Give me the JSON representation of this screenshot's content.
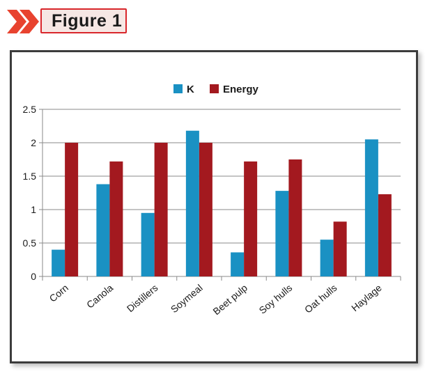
{
  "badge": {
    "label": "Figure 1",
    "accent_color": "#d9262b",
    "chevron_color": "#e8432f"
  },
  "chart_data": {
    "type": "bar",
    "categories": [
      "Corn",
      "Canola",
      "Distillers",
      "Soymeal",
      "Beet pulp",
      "Soy hulls",
      "Oat hulls",
      "Haylage"
    ],
    "series": [
      {
        "name": "K",
        "color": "#1a91c3",
        "values": [
          0.4,
          1.38,
          0.95,
          2.18,
          0.36,
          1.28,
          0.55,
          2.05
        ]
      },
      {
        "name": "Energy",
        "color": "#a3191f",
        "values": [
          2.0,
          1.72,
          2.0,
          2.0,
          1.72,
          1.75,
          0.82,
          1.23
        ]
      }
    ],
    "title": "",
    "xlabel": "",
    "ylabel": "",
    "ylim": [
      0,
      2.5
    ],
    "yticks": [
      0,
      0.5,
      1,
      1.5,
      2,
      2.5
    ],
    "ytick_labels": [
      "0",
      "0.5",
      "1",
      "1.5",
      "2",
      "2.5"
    ],
    "grid": true,
    "legend_position": "top-center"
  }
}
